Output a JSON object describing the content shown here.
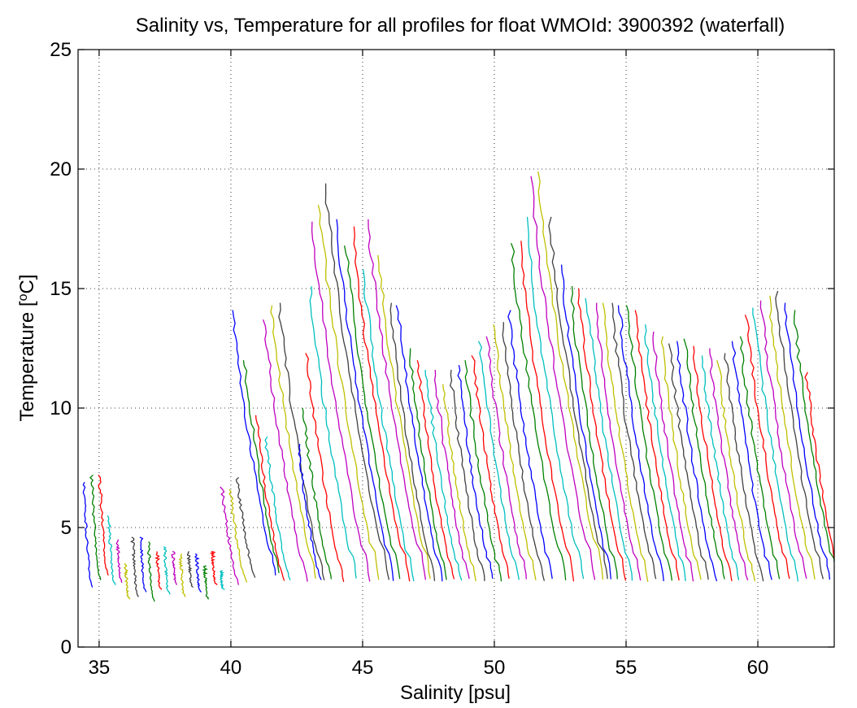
{
  "chart_data": {
    "type": "line",
    "title": "Salinity vs, Temperature for all profiles for float WMOId: 3900392 (waterfall)",
    "xlabel": "Salinity [psu]",
    "ylabel_main": "Temperature [",
    "ylabel_sup": "o",
    "ylabel_end": "C]",
    "xlim": [
      34.2,
      62.9
    ],
    "ylim": [
      0,
      25
    ],
    "x_ticks": [
      35,
      40,
      45,
      50,
      55,
      60
    ],
    "y_ticks": [
      0,
      5,
      10,
      15,
      20,
      25
    ],
    "grid": true,
    "grid_style": "dotted",
    "colors": [
      "#0000ff",
      "#008000",
      "#ff0000",
      "#00bfbf",
      "#bf00bf",
      "#bfbf00",
      "#404040"
    ],
    "profile_count": 94,
    "profile_spacing": 0.3,
    "profile_start_salinity": 34.3,
    "profiles": [
      {
        "top": 6.9,
        "bot": 3.2,
        "x0": 34.3
      }
    ]
  }
}
